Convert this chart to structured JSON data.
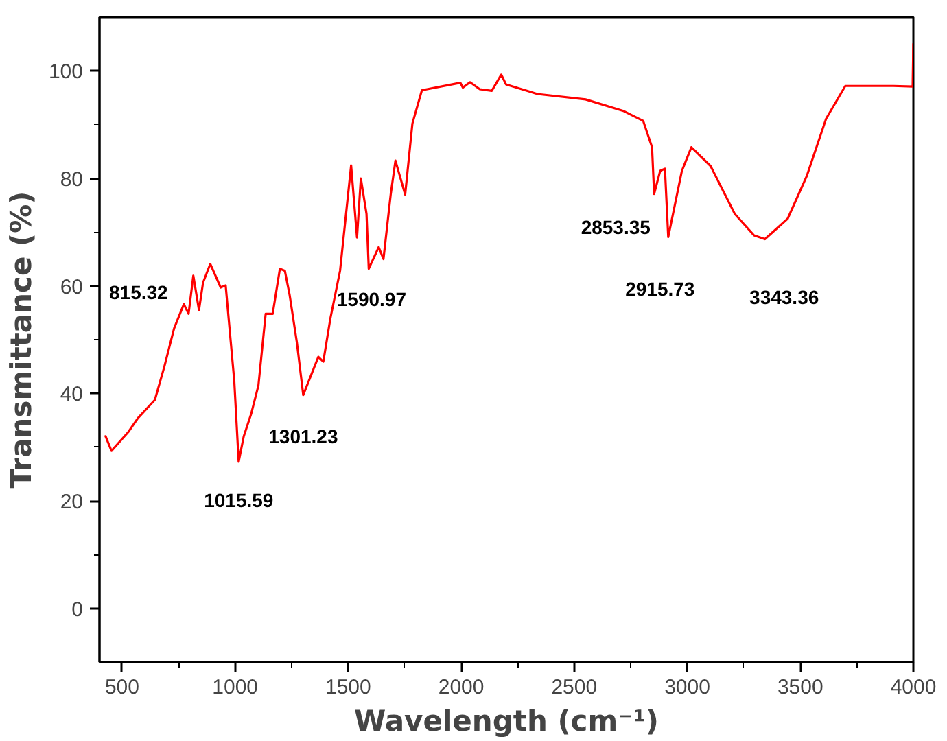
{
  "chart_data": {
    "type": "line",
    "xlabel": "Wavelength (cm⁻¹)",
    "ylabel": "Transmittance (%)",
    "xlim": [
      400,
      4000
    ],
    "ylim": [
      -10,
      110
    ],
    "xticks": [
      500,
      1000,
      1500,
      2000,
      2500,
      3000,
      3500,
      4000
    ],
    "yticks": [
      0,
      20,
      40,
      60,
      80,
      100
    ],
    "grid": false,
    "marker": "none",
    "line_style": "solid",
    "series": [
      {
        "color": "#ff0000",
        "x": [
          425,
          453,
          527,
          570,
          645,
          687,
          730,
          773,
          794,
          815,
          840,
          858,
          890,
          936,
          958,
          996,
          1015.59,
          1038,
          1071,
          1103,
          1135,
          1166,
          1198,
          1220,
          1241,
          1273,
          1301.23,
          1368,
          1390,
          1421,
          1464,
          1513,
          1539,
          1556,
          1581,
          1590.97,
          1635,
          1656,
          1688,
          1709,
          1752,
          1784,
          1826,
          1996,
          2007,
          2039,
          2082,
          2135,
          2177,
          2198,
          2283,
          2337,
          2550,
          2720,
          2805,
          2844,
          2853.35,
          2880,
          2901,
          2915.73,
          2976,
          3018,
          3103,
          3210,
          3295,
          3343.36,
          3444,
          3529,
          3614,
          3699,
          3912,
          3997,
          4000
        ],
        "values": [
          32.2,
          29.3,
          32.8,
          35.4,
          38.8,
          45,
          52.1,
          56.6,
          54.8,
          61.9,
          55.5,
          60.6,
          64.1,
          59.7,
          60.1,
          42.4,
          27.3,
          32,
          36.2,
          41.5,
          54.8,
          54.8,
          63.2,
          62.8,
          58.3,
          49.5,
          39.7,
          46.8,
          45.9,
          53.9,
          62.8,
          82.4,
          69,
          80,
          73.4,
          63.2,
          67.2,
          65,
          77,
          83.3,
          77,
          90.2,
          96.4,
          97.8,
          96.9,
          97.9,
          96.6,
          96.3,
          99.3,
          97.5,
          96.4,
          95.7,
          94.7,
          92.5,
          90.7,
          85.8,
          77.1,
          81.4,
          81.8,
          69.1,
          81.4,
          85.8,
          82.3,
          73.4,
          69.4,
          68.7,
          72.5,
          80.5,
          91.1,
          97.2,
          97.2,
          97.1,
          105.1
        ]
      }
    ],
    "annotations": [
      {
        "text": "815.32",
        "x": 815.32,
        "y": 61.9
      },
      {
        "text": "1015.59",
        "x": 1015.59,
        "y": 27.3
      },
      {
        "text": "1301.23",
        "x": 1301.23,
        "y": 39.7
      },
      {
        "text": "1590.97",
        "x": 1590.97,
        "y": 63.2
      },
      {
        "text": "2853.35",
        "x": 2853.35,
        "y": 77.1
      },
      {
        "text": "2915.73",
        "x": 2915.73,
        "y": 69.1
      },
      {
        "text": "3343.36",
        "x": 3343.36,
        "y": 68.7
      }
    ]
  }
}
